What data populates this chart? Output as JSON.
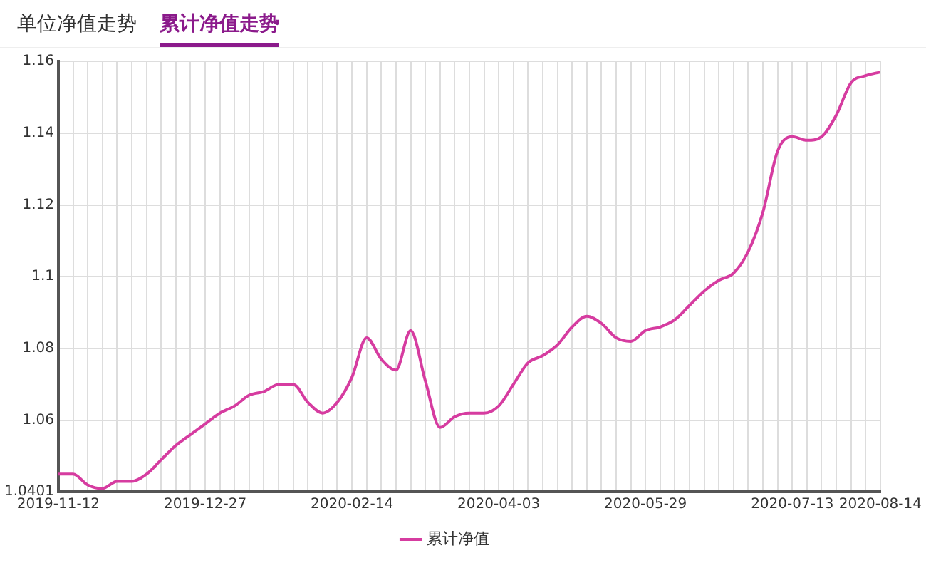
{
  "chart_data": {
    "type": "line",
    "annotations": [
      "单位净值走势",
      "累计净值走势"
    ],
    "categories": [
      "2019-11-12",
      null,
      null,
      null,
      null,
      null,
      null,
      null,
      null,
      null,
      "2019-12-27",
      null,
      null,
      null,
      null,
      null,
      null,
      null,
      null,
      null,
      "2020-02-14",
      null,
      null,
      null,
      null,
      null,
      null,
      null,
      null,
      null,
      "2020-04-03",
      null,
      null,
      null,
      null,
      null,
      null,
      null,
      null,
      null,
      "2020-05-29",
      null,
      null,
      null,
      null,
      null,
      null,
      null,
      null,
      null,
      "2020-07-13",
      null,
      null,
      null,
      null,
      null,
      "2020-08-14"
    ],
    "series": [
      {
        "name": "累计净值",
        "color": "#d63ca0",
        "values": [
          1.045,
          1.045,
          1.042,
          1.041,
          1.043,
          1.043,
          1.045,
          1.049,
          1.053,
          1.056,
          1.059,
          1.062,
          1.064,
          1.067,
          1.068,
          1.07,
          1.07,
          1.065,
          1.062,
          1.065,
          1.072,
          1.083,
          1.077,
          1.074,
          1.085,
          1.071,
          1.058,
          1.061,
          1.062,
          1.062,
          1.064,
          1.07,
          1.076,
          1.078,
          1.081,
          1.086,
          1.089,
          1.087,
          1.083,
          1.082,
          1.085,
          1.086,
          1.088,
          1.092,
          1.096,
          1.099,
          1.101,
          1.107,
          1.118,
          1.135,
          1.139,
          1.138,
          1.139,
          1.145,
          1.154,
          1.156,
          1.157
        ]
      }
    ],
    "ylim": [
      1.0401,
      1.16
    ],
    "yticks": [
      1.0401,
      1.06,
      1.08,
      1.1,
      1.12,
      1.14,
      1.16
    ],
    "grid": true,
    "legend": "bottom",
    "marker": "none",
    "line_style": "solid"
  }
}
